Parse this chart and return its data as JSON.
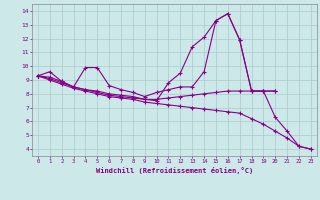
{
  "xlabel": "Windchill (Refroidissement éolien,°C)",
  "background_color": "#cce8e8",
  "grid_color": "#aacccc",
  "line_color": "#880088",
  "figsize": [
    3.2,
    2.0
  ],
  "dpi": 100,
  "ylim": [
    3.5,
    14.5
  ],
  "xlim": [
    -0.5,
    23.5
  ],
  "yticks": [
    4,
    5,
    6,
    7,
    8,
    9,
    10,
    11,
    12,
    13,
    14
  ],
  "xticks": [
    0,
    1,
    2,
    3,
    4,
    5,
    6,
    7,
    8,
    9,
    10,
    11,
    12,
    13,
    14,
    15,
    16,
    17,
    18,
    19,
    20,
    21,
    22,
    23
  ],
  "line1_x": [
    0,
    1,
    2,
    3,
    4,
    5,
    6,
    7,
    8,
    9,
    10,
    11,
    12,
    13,
    14,
    15,
    16,
    17,
    18,
    19,
    20
  ],
  "line1_y": [
    9.3,
    9.6,
    8.9,
    8.5,
    9.9,
    9.9,
    8.6,
    8.3,
    8.1,
    7.8,
    8.1,
    8.3,
    8.5,
    8.5,
    9.6,
    13.3,
    13.8,
    11.9,
    8.2,
    8.2,
    8.2
  ],
  "line2_x": [
    0,
    1,
    2,
    3,
    4,
    5,
    6,
    7,
    8,
    9,
    10,
    11,
    12,
    13,
    14,
    15,
    16,
    17,
    18,
    19,
    20,
    21,
    22,
    23
  ],
  "line2_y": [
    9.3,
    9.2,
    8.9,
    8.5,
    8.3,
    8.2,
    8.0,
    7.9,
    7.8,
    7.6,
    7.5,
    8.8,
    9.5,
    11.4,
    12.1,
    13.3,
    13.8,
    11.9,
    8.2,
    8.2,
    6.3,
    5.3,
    4.2,
    4.0
  ],
  "line3_x": [
    0,
    1,
    2,
    3,
    4,
    5,
    6,
    7,
    8,
    9,
    10,
    11,
    12,
    13,
    14,
    15,
    16,
    17,
    18,
    19,
    20
  ],
  "line3_y": [
    9.3,
    9.1,
    8.8,
    8.5,
    8.3,
    8.1,
    7.9,
    7.8,
    7.7,
    7.6,
    7.6,
    7.7,
    7.8,
    7.9,
    8.0,
    8.1,
    8.2,
    8.2,
    8.2,
    8.2,
    8.2
  ],
  "line4_x": [
    0,
    1,
    2,
    3,
    4,
    5,
    6,
    7,
    8,
    9,
    10,
    11,
    12,
    13,
    14,
    15,
    16,
    17,
    18,
    19,
    20,
    21,
    22,
    23
  ],
  "line4_y": [
    9.3,
    9.0,
    8.7,
    8.4,
    8.2,
    8.0,
    7.8,
    7.7,
    7.6,
    7.4,
    7.3,
    7.2,
    7.1,
    7.0,
    6.9,
    6.8,
    6.7,
    6.6,
    6.2,
    5.8,
    5.3,
    4.8,
    4.2,
    4.0
  ]
}
